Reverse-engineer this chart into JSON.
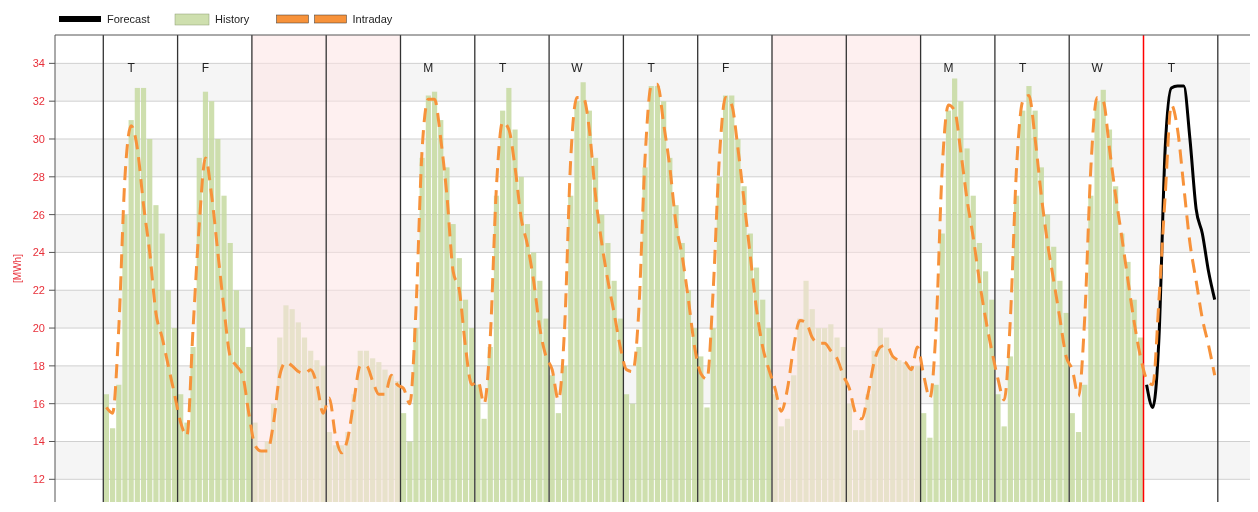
{
  "chart_data": {
    "type": "line",
    "ylabel": "[MWh]",
    "categories": [
      null,
      null,
      null,
      null,
      "T",
      null,
      null,
      null,
      null,
      null,
      null,
      null,
      null,
      null,
      null,
      null,
      "F",
      null,
      null,
      null,
      null,
      null,
      null,
      null,
      null,
      null,
      null,
      null,
      null,
      null,
      null,
      null,
      null,
      null,
      null,
      null,
      null,
      null,
      null,
      null,
      null,
      null,
      null,
      null,
      null,
      null,
      null,
      null,
      null,
      null,
      null,
      null,
      "M",
      null,
      null,
      null,
      null,
      null,
      null,
      null,
      null,
      null,
      null,
      null,
      "T",
      null,
      null,
      null,
      null,
      null,
      null,
      null,
      null,
      null,
      null,
      null,
      "W",
      null,
      null,
      null,
      null,
      null,
      null,
      null,
      null,
      null,
      null,
      null,
      "T",
      null,
      null,
      null,
      null,
      null,
      null,
      null,
      null,
      null,
      null,
      null,
      "F",
      null,
      null,
      null,
      null,
      null,
      null,
      null,
      null,
      null,
      null,
      null,
      null,
      null,
      null,
      null,
      null,
      null,
      null,
      null,
      null,
      null,
      null,
      null,
      null,
      null,
      null,
      null,
      null,
      null,
      null,
      null,
      null,
      null,
      null,
      null,
      "M",
      null,
      null,
      null,
      null,
      null,
      null,
      null,
      null,
      null,
      null,
      null,
      "T",
      null,
      null,
      null,
      null,
      null,
      null,
      null,
      null,
      null,
      null,
      null,
      "W",
      null,
      null,
      null,
      null,
      null,
      null,
      null,
      null,
      null,
      null,
      null,
      "T",
      null,
      null,
      null,
      null,
      null,
      null,
      null
    ],
    "ylim": [
      10.8,
      35.5
    ],
    "yticks": [
      12,
      14,
      16,
      18,
      20,
      22,
      24,
      26,
      28,
      30,
      32,
      34
    ],
    "grid": "y",
    "legend": "top left",
    "bands": [
      {
        "axis": "y",
        "from": 12,
        "to": 14,
        "color": "#f5f5f5"
      },
      {
        "axis": "y",
        "from": 16,
        "to": 18,
        "color": "#f5f5f5"
      },
      {
        "axis": "y",
        "from": 20,
        "to": 22,
        "color": "#f5f5f5"
      },
      {
        "axis": "y",
        "from": 24,
        "to": 26,
        "color": "#f5f5f5"
      },
      {
        "axis": "y",
        "from": 28,
        "to": 30,
        "color": "#f5f5f5"
      },
      {
        "axis": "y",
        "from": 32,
        "to": 34,
        "color": "#f5f5f5"
      }
    ],
    "series": [
      {
        "name": "Forecast",
        "color": "#000000",
        "line_style": "solid",
        "values": [
          null,
          null,
          null,
          null,
          null,
          null,
          null,
          null,
          null,
          null,
          null,
          null,
          null,
          null,
          null,
          null,
          null,
          null,
          null,
          null,
          null,
          null,
          null,
          null,
          null,
          null,
          null,
          null,
          null,
          null,
          null,
          null,
          null,
          null,
          null,
          null,
          null,
          null,
          null,
          null,
          null,
          null,
          null,
          null,
          null,
          null,
          null,
          null,
          null,
          null,
          null,
          null,
          null,
          null,
          null,
          null,
          null,
          null,
          null,
          null,
          null,
          null,
          null,
          null,
          null,
          null,
          null,
          null,
          null,
          null,
          null,
          null,
          null,
          null,
          null,
          null,
          null,
          null,
          null,
          null,
          null,
          null,
          null,
          null,
          null,
          null,
          null,
          null,
          null,
          null,
          null,
          null,
          null,
          null,
          null,
          null,
          null,
          null,
          null,
          null,
          null,
          null,
          null,
          null,
          null,
          null,
          null,
          null,
          null,
          null,
          null,
          null,
          null,
          null,
          null,
          null,
          null,
          null,
          null,
          null,
          null,
          null,
          null,
          null,
          null,
          null,
          null,
          null,
          null,
          null,
          null,
          null,
          null,
          null,
          null,
          null,
          null,
          null,
          null,
          null,
          null,
          null,
          null,
          null,
          null,
          null,
          null,
          null,
          null,
          null,
          null,
          null,
          null,
          null,
          null,
          null,
          null,
          null,
          null,
          null,
          null,
          null,
          null,
          null,
          null,
          null,
          null,
          null,
          17,
          15.8,
          19.5,
          29.5,
          32.7,
          32.8,
          32.8,
          30,
          26.3,
          25,
          23,
          21.5
        ]
      },
      {
        "name": "History",
        "type": "bar",
        "color": "#c5d9a0",
        "values": [
          16.5,
          14.7,
          17,
          26,
          31,
          32.7,
          32.7,
          30,
          26.5,
          25,
          22,
          20,
          16.5,
          15,
          19,
          29,
          32.5,
          32,
          30,
          27,
          24.5,
          22,
          20,
          19,
          15,
          13.5,
          14,
          16,
          19.5,
          21.2,
          21,
          20.3,
          19.5,
          18.8,
          18.3,
          18,
          14.5,
          13.8,
          13.8,
          14.5,
          16.5,
          18.8,
          18.8,
          18.4,
          18.2,
          17.8,
          17.5,
          17.2,
          15.5,
          14,
          20,
          29,
          32.3,
          32.5,
          31,
          28.5,
          25.5,
          23.7,
          21.5,
          20,
          17,
          15.2,
          19,
          27,
          31.5,
          32.7,
          30.5,
          28,
          25.5,
          24,
          22.5,
          20.5,
          17.5,
          15.5,
          18,
          27,
          32,
          33,
          31.5,
          29,
          26,
          24.5,
          22.5,
          20.5,
          16.5,
          16,
          19,
          28.5,
          32.8,
          32.8,
          32,
          29,
          26.5,
          24.5,
          22,
          20,
          18.5,
          15.8,
          20,
          28,
          32.3,
          32.3,
          30,
          27.5,
          25,
          23.2,
          21.5,
          20,
          16.5,
          14.8,
          15.2,
          17.5,
          20.5,
          22.5,
          21,
          20,
          20,
          20.2,
          19.5,
          19,
          16,
          14.6,
          14.6,
          16.5,
          18.8,
          20,
          19.5,
          18.5,
          18.3,
          18.2,
          18,
          18,
          15.5,
          14.2,
          17,
          25,
          31.5,
          33.2,
          32,
          29.5,
          27,
          24.5,
          23,
          21.5,
          16.5,
          14.8,
          18.5,
          27,
          31.5,
          32.8,
          31.5,
          28.5,
          26,
          24.3,
          22.5,
          20.8,
          15.5,
          14.5,
          17,
          27,
          32,
          32.6,
          30.5,
          27.5,
          25,
          23.5,
          21.5,
          19.5,
          null,
          null,
          null,
          null,
          null,
          null,
          null,
          null,
          null,
          null,
          null,
          null
        ]
      },
      {
        "name": "Intraday",
        "color": "#f7923a",
        "line_style": "dashed",
        "values": [
          15.8,
          15.5,
          20,
          28,
          30.7,
          29.5,
          26.5,
          24,
          20.8,
          19.5,
          18,
          16.5,
          15,
          14.3,
          20,
          25.5,
          29,
          27,
          24,
          21,
          18.5,
          18,
          17.5,
          15.5,
          13.8,
          13.5,
          13.5,
          15,
          17.5,
          18.2,
          18,
          17.7,
          17.6,
          17.8,
          17,
          15.5,
          16.3,
          14.3,
          13.4,
          14.2,
          16.2,
          18,
          18,
          17.2,
          16.5,
          16.5,
          17.5,
          17,
          16.8,
          16,
          21,
          29.5,
          32.1,
          32.1,
          30,
          27,
          23,
          22,
          19,
          17,
          17.2,
          16,
          19.5,
          27.5,
          30.9,
          30.5,
          28.5,
          25.8,
          24.4,
          22.5,
          20,
          18.5,
          17.8,
          16.2,
          20,
          29,
          32.2,
          32.2,
          30.5,
          27,
          24.5,
          22.5,
          20.8,
          19,
          17.8,
          17.7,
          21,
          29,
          32.8,
          32.9,
          30.8,
          28.5,
          25.5,
          23.8,
          21.5,
          19,
          17.6,
          17.3,
          22,
          29,
          32.2,
          31.8,
          29.5,
          26.7,
          23.8,
          21,
          19,
          17.8,
          16.8,
          15.6,
          16.8,
          19,
          20.4,
          20.3,
          19.5,
          19.2,
          19.2,
          18.8,
          18.4,
          17.5,
          16.8,
          15.5,
          15.2,
          16.5,
          18.2,
          19,
          19.1,
          18.5,
          18.3,
          18.2,
          17.8,
          19,
          17.5,
          16.3,
          20,
          28.5,
          31.8,
          31.5,
          29.3,
          26.8,
          24.8,
          22.5,
          20.5,
          18.8,
          17.3,
          16.2,
          20.5,
          28.5,
          32,
          32.3,
          30,
          27,
          24.5,
          22.5,
          20.5,
          18.5,
          17.8,
          16.4,
          20.5,
          28.5,
          32.2,
          32,
          29.5,
          27,
          24.8,
          22.5,
          20.3,
          18.5,
          17.3,
          17,
          21.5,
          27,
          31.8,
          30.5,
          27.5,
          24.5,
          22.5,
          20.5,
          19.1,
          17.5
        ]
      }
    ]
  }
}
